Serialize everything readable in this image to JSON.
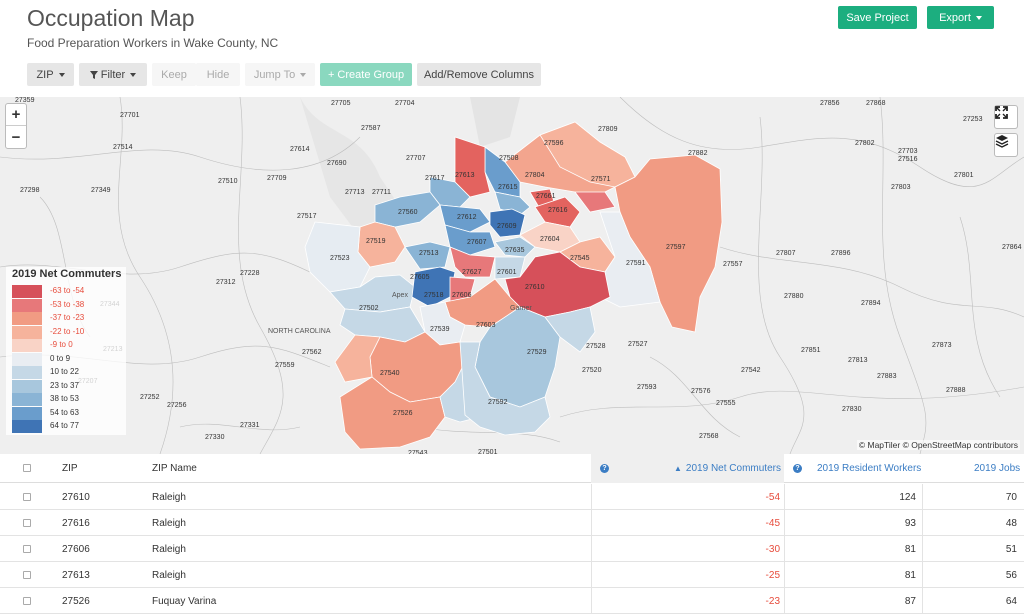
{
  "header": {
    "title": "Occupation Map",
    "subtitle": "Food Preparation Workers in Wake County, NC",
    "save_label": "Save Project",
    "export_label": "Export"
  },
  "toolbar": {
    "zip_label": "ZIP",
    "filter_label": "Filter",
    "keep_label": "Keep",
    "hide_label": "Hide",
    "jump_label": "Jump To",
    "create_group_label": "+ Create Group",
    "columns_label": "Add/Remove Columns"
  },
  "map": {
    "attribution": "© MapTiler © OpenStreetMap contributors",
    "zoom_in": "+",
    "zoom_out": "−",
    "state_label": "NORTH CAROLINA",
    "cities": [
      "Apex",
      "Garner"
    ],
    "zip_labels": [
      "27705",
      "27704",
      "27856",
      "27868",
      "27359",
      "27701",
      "27587",
      "27596",
      "27809",
      "27253",
      "27514",
      "27614",
      "27508",
      "27882",
      "27802",
      "27703",
      "27707",
      "27690",
      "27804",
      "27516",
      "27510",
      "27709",
      "27617",
      "27613",
      "27615",
      "27571",
      "27801",
      "27298",
      "27349",
      "27713",
      "27711",
      "27803",
      "27517",
      "27560",
      "27612",
      "27616",
      "27661",
      "27609",
      "27519",
      "27607",
      "27635",
      "27604",
      "27597",
      "27807",
      "27896",
      "27523",
      "27513",
      "27627",
      "27545",
      "27591",
      "27557",
      "27228",
      "27312",
      "27605",
      "27601",
      "27610",
      "27344",
      "27539",
      "27502",
      "27518",
      "27606",
      "27880",
      "27894",
      "27603",
      "27562",
      "27529",
      "27528",
      "27527",
      "27851",
      "27873",
      "27813",
      "27213",
      "27559",
      "27540",
      "27520",
      "27542",
      "27883",
      "27207",
      "27593",
      "27576",
      "27888",
      "27252",
      "27256",
      "27592",
      "27555",
      "27526",
      "27830",
      "27331",
      "27330",
      "27568",
      "27501",
      "27543",
      "27864"
    ],
    "legend": {
      "title": "2019 Net Commuters",
      "ranges": [
        "-63 to -54",
        "-53 to -38",
        "-37 to -23",
        "-22 to -10",
        "-9 to 0",
        "0 to 9",
        "10 to 22",
        "23 to 37",
        "38 to 53",
        "54 to 63",
        "64 to 77"
      ],
      "colors": [
        "#d6505a",
        "#e7787a",
        "#f19b83",
        "#f6b39c",
        "#f9d3c6",
        "#e9edf2",
        "#c5d8e6",
        "#a8c7dd",
        "#8ab4d5",
        "#6a9dcc",
        "#3f74b5"
      ]
    }
  },
  "table": {
    "columns": {
      "zip": "ZIP",
      "zip_name": "ZIP Name",
      "net_commuters": "2019 Net Commuters",
      "resident_workers": "2019 Resident Workers",
      "jobs": "2019 Jobs"
    },
    "rows": [
      {
        "zip": "27610",
        "name": "Raleigh",
        "net": "-54",
        "resident": "124",
        "jobs": "70"
      },
      {
        "zip": "27616",
        "name": "Raleigh",
        "net": "-45",
        "resident": "93",
        "jobs": "48"
      },
      {
        "zip": "27606",
        "name": "Raleigh",
        "net": "-30",
        "resident": "81",
        "jobs": "51"
      },
      {
        "zip": "27613",
        "name": "Raleigh",
        "net": "-25",
        "resident": "81",
        "jobs": "56"
      },
      {
        "zip": "27526",
        "name": "Fuquay Varina",
        "net": "-23",
        "resident": "87",
        "jobs": "64"
      }
    ]
  },
  "colors": {
    "accent_green": "#1cae7f",
    "negative_red": "#e74c3c",
    "link_blue": "#3b7dc4"
  }
}
